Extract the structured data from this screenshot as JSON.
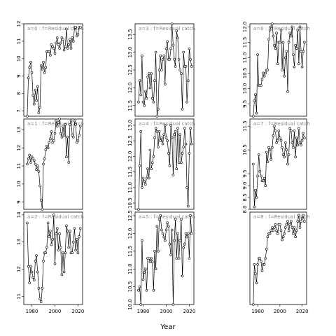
{
  "chart_data": {
    "type": "line",
    "xlabel": "Year",
    "x_ticks": [
      1980,
      2000,
      2020
    ],
    "x": [
      1976,
      1977,
      1978,
      1979,
      1980,
      1981,
      1982,
      1983,
      1984,
      1985,
      1986,
      1987,
      1988,
      1989,
      1990,
      1991,
      1992,
      1993,
      1994,
      1995,
      1996,
      1997,
      1998,
      1999,
      2000,
      2001,
      2002,
      2003,
      2004,
      2005,
      2006,
      2007,
      2008,
      2009,
      2010,
      2011,
      2012,
      2013,
      2014,
      2015,
      2016,
      2017,
      2018,
      2019,
      2020,
      2021,
      2022
    ],
    "panels": [
      {
        "label": "a=0 : f=Residual catch",
        "ylim": [
          6.7,
          12.0
        ],
        "yticks": [
          7,
          8,
          9,
          10,
          11,
          12
        ],
        "values": [
          6.7,
          8.9,
          9.5,
          9.8,
          9.2,
          7.9,
          7.4,
          8.2,
          7.6,
          8.4,
          6.9,
          7.2,
          9.6,
          9.4,
          9.8,
          9.2,
          9.5,
          10.4,
          10.4,
          10.4,
          10.2,
          10.8,
          10.7,
          10.6,
          10.3,
          10.9,
          11.2,
          10.8,
          10.6,
          10.9,
          11.2,
          11.1,
          10.5,
          10.7,
          11.7,
          10.6,
          10.8,
          11.1,
          10.6,
          11.2,
          11.0,
          11.8,
          11.8,
          11.3,
          11.4,
          11.8,
          11.8
        ]
      },
      {
        "label": "a=1 : f=Residual catch",
        "ylim": [
          8.6,
          13.6
        ],
        "yticks": [
          9,
          10,
          11,
          12,
          13
        ],
        "values": [
          11.1,
          11.4,
          11.6,
          11.2,
          11.5,
          11.4,
          11.3,
          11.1,
          10.8,
          11.0,
          10.7,
          9.9,
          9.1,
          8.6,
          11.1,
          11.4,
          11.9,
          12.1,
          12.0,
          12.3,
          12.5,
          12.9,
          12.3,
          12.4,
          12.8,
          13.5,
          13.2,
          13.4,
          13.6,
          12.8,
          12.6,
          13.2,
          12.7,
          13.3,
          11.5,
          12.6,
          11.2,
          13.3,
          13.5,
          12.7,
          12.6,
          13.5,
          13.3,
          12.3,
          12.4,
          12.7,
          13.2
        ]
      },
      {
        "label": "a=2 : f=Residual catch",
        "ylim": [
          10.7,
          14.1
        ],
        "yticks": [
          11.0,
          12.0,
          13.0,
          14.0
        ],
        "values": [
          13.7,
          12.1,
          11.5,
          12.1,
          11.9,
          11.7,
          11.6,
          12.3,
          12.5,
          11.9,
          11.3,
          10.9,
          10.8,
          11.3,
          12.3,
          12.6,
          12.6,
          12.8,
          13.7,
          13.2,
          13.4,
          12.9,
          13.1,
          14.0,
          12.2,
          13.3,
          13.5,
          12.7,
          13.3,
          12.8,
          11.8,
          12.6,
          11.9,
          12.6,
          13.6,
          13.4,
          12.8,
          13.4,
          12.6,
          12.6,
          13.0,
          13.5,
          12.7,
          13.1,
          12.6,
          13.2,
          13.5
        ]
      },
      {
        "label": "a=3 : f=Residual catch",
        "ylim": [
          11.2,
          13.8
        ],
        "yticks": [
          11.5,
          12.0,
          12.5,
          13.0,
          13.5
        ],
        "values": [
          11.6,
          12.2,
          11.8,
          12.9,
          11.6,
          11.5,
          11.9,
          11.7,
          12.3,
          12.4,
          12.0,
          12.4,
          11.7,
          11.6,
          12.2,
          13.0,
          11.2,
          11.4,
          12.5,
          12.9,
          12.5,
          12.8,
          12.9,
          12.1,
          13.1,
          13.3,
          12.8,
          12.8,
          13.1,
          13.8,
          13.2,
          12.8,
          12.6,
          13.6,
          13.4,
          12.8,
          12.5,
          12.4,
          11.4,
          13.0,
          12.6,
          12.6,
          11.6,
          12.2,
          13.1,
          12.8,
          12.6
        ]
      },
      {
        "label": "a=4 : f=Residual catch",
        "ylim": [
          10.3,
          13.2
        ],
        "yticks": [
          10.5,
          11.0,
          11.5,
          12.0,
          12.5,
          13.0
        ],
        "values": [
          10.3,
          11.7,
          12.8,
          11.0,
          11.3,
          11.2,
          11.1,
          11.3,
          11.6,
          11.3,
          12.2,
          11.6,
          11.8,
          12.0,
          12.6,
          12.9,
          12.8,
          12.3,
          12.8,
          12.5,
          12.6,
          12.4,
          12.7,
          13.0,
          12.6,
          12.5,
          12.1,
          11.7,
          13.0,
          12.6,
          11.4,
          12.7,
          12.8,
          11.6,
          12.9,
          11.8,
          12.7,
          11.8,
          12.1,
          12.3,
          12.9,
          12.4,
          11.0,
          10.4,
          12.1,
          12.9,
          12.4
        ]
      },
      {
        "label": "a=5 : f=Residual catch",
        "ylim": [
          10.0,
          12.6
        ],
        "yticks": [
          10.0,
          10.5,
          11.0,
          11.5,
          12.0,
          12.5
        ],
        "values": [
          10.4,
          10.5,
          10.0,
          11.8,
          10.7,
          10.9,
          11.0,
          10.4,
          11.3,
          11.3,
          11.2,
          11.3,
          11.2,
          10.4,
          11.5,
          11.0,
          12.2,
          11.5,
          12.4,
          12.5,
          12.1,
          12.0,
          11.9,
          11.8,
          12.1,
          12.3,
          12.2,
          11.7,
          11.4,
          12.1,
          10.0,
          11.8,
          12.4,
          11.3,
          12.0,
          11.3,
          11.8,
          12.4,
          10.8,
          11.6,
          11.7,
          12.0,
          11.9,
          12.0,
          11.3,
          12.5,
          12.0
        ]
      },
      {
        "label": "a=6 : f=Residual catch",
        "ylim": [
          9.1,
          12.1
        ],
        "yticks": [
          9.5,
          10.0,
          10.5,
          11.0,
          11.5,
          12.0
        ],
        "values": [
          9.1,
          9.6,
          9.8,
          9.2,
          11.1,
          10.1,
          10.1,
          10.1,
          10.3,
          10.5,
          10.4,
          10.5,
          10.6,
          10.6,
          11.6,
          11.9,
          12.0,
          12.1,
          11.7,
          11.4,
          11.3,
          11.8,
          10.8,
          11.5,
          11.5,
          11.9,
          10.6,
          11.5,
          10.4,
          11.0,
          11.2,
          9.9,
          11.5,
          11.8,
          11.7,
          12.0,
          11.1,
          10.7,
          11.4,
          11.3,
          11.9,
          10.8,
          12.0,
          11.2,
          10.7,
          11.2,
          11.5
        ]
      },
      {
        "label": "a=7 : f=Residual catch",
        "ylim": [
          8.0,
          11.8
        ],
        "yticks": [
          8.0,
          8.5,
          9.0,
          9.5,
          10.5,
          11.5
        ],
        "values": [
          9.9,
          8.1,
          8.8,
          8.5,
          9.4,
          10.3,
          9.6,
          9.4,
          9.2,
          9.2,
          9.3,
          9.0,
          10.4,
          10.0,
          10.6,
          10.5,
          10.1,
          10.6,
          11.1,
          11.5,
          11.3,
          10.8,
          10.9,
          11.3,
          11.0,
          10.9,
          10.6,
          10.3,
          10.2,
          10.8,
          10.5,
          9.9,
          10.3,
          11.4,
          11.3,
          10.8,
          10.6,
          11.3,
          10.2,
          11.0,
          10.7,
          11.4,
          10.8,
          10.7,
          10.9,
          11.2,
          11.0
        ]
      },
      {
        "label": "a=8 : f=Residual catch",
        "ylim": [
          8.6,
          11.6
        ],
        "yticks": [],
        "values": [
          8.6,
          9.9,
          9.6,
          9.3,
          9.9,
          10.1,
          10.1,
          10.0,
          9.7,
          9.9,
          9.9,
          10.1,
          10.4,
          10.8,
          10.9,
          10.9,
          11.0,
          11.1,
          11.0,
          11.1,
          11.2,
          11.0,
          10.9,
          11.2,
          11.2,
          11.0,
          10.7,
          10.8,
          10.9,
          11.1,
          11.2,
          11.3,
          11.0,
          11.2,
          11.3,
          11.1,
          10.9,
          11.1,
          10.8,
          11.0,
          11.3,
          11.5,
          11.1,
          11.3,
          11.4,
          11.5,
          11.3
        ]
      }
    ]
  }
}
